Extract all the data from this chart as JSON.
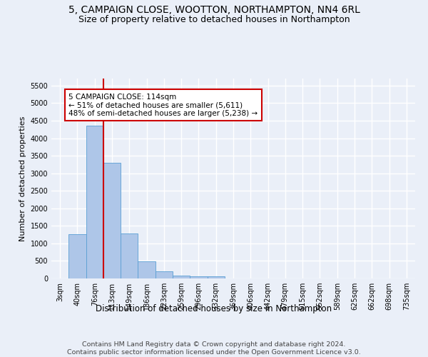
{
  "title": "5, CAMPAIGN CLOSE, WOOTTON, NORTHAMPTON, NN4 6RL",
  "subtitle": "Size of property relative to detached houses in Northampton",
  "xlabel": "Distribution of detached houses by size in Northampton",
  "ylabel": "Number of detached properties",
  "footer_line1": "Contains HM Land Registry data © Crown copyright and database right 2024.",
  "footer_line2": "Contains public sector information licensed under the Open Government Licence v3.0.",
  "bar_labels": [
    "3sqm",
    "40sqm",
    "76sqm",
    "113sqm",
    "149sqm",
    "186sqm",
    "223sqm",
    "259sqm",
    "296sqm",
    "332sqm",
    "369sqm",
    "406sqm",
    "442sqm",
    "479sqm",
    "515sqm",
    "552sqm",
    "589sqm",
    "625sqm",
    "662sqm",
    "698sqm",
    "735sqm"
  ],
  "bar_values": [
    0,
    1270,
    4350,
    3300,
    1280,
    490,
    210,
    80,
    60,
    55,
    0,
    0,
    0,
    0,
    0,
    0,
    0,
    0,
    0,
    0,
    0
  ],
  "bar_color": "#aec6e8",
  "bar_edge_color": "#5a9fd4",
  "annotation_box_text": "5 CAMPAIGN CLOSE: 114sqm\n← 51% of detached houses are smaller (5,611)\n48% of semi-detached houses are larger (5,238) →",
  "vline_x": 2.5,
  "vline_color": "#cc0000",
  "ylim": [
    0,
    5700
  ],
  "yticks": [
    0,
    500,
    1000,
    1500,
    2000,
    2500,
    3000,
    3500,
    4000,
    4500,
    5000,
    5500
  ],
  "background_color": "#eaeff8",
  "grid_color": "#ffffff",
  "annotation_fontsize": 7.5,
  "title_fontsize": 10,
  "subtitle_fontsize": 9,
  "xlabel_fontsize": 8.5,
  "ylabel_fontsize": 8,
  "footer_fontsize": 6.8,
  "tick_fontsize": 7
}
